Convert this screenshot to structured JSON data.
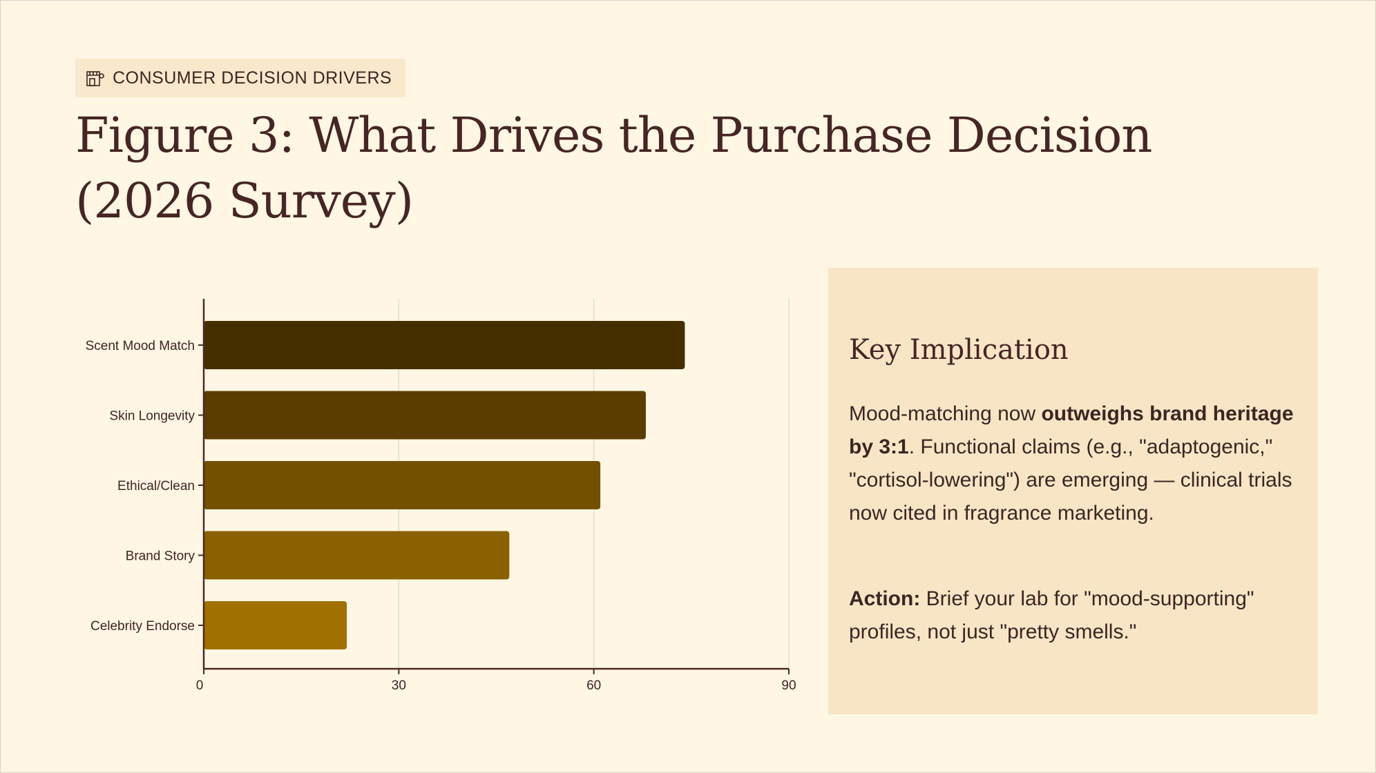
{
  "tag": {
    "icon": "storefront-icon",
    "label": "CONSUMER DECISION DRIVERS"
  },
  "title": "Figure 3: What Drives the Purchase Decision (2026 Survey)",
  "chart_data": {
    "type": "bar",
    "orientation": "horizontal",
    "categories": [
      "Scent Mood Match",
      "Skin Longevity",
      "Ethical/Clean",
      "Brand Story",
      "Celebrity Endorse"
    ],
    "values": [
      74,
      68,
      61,
      47,
      22
    ],
    "colors": [
      "#452f00",
      "#5c3d00",
      "#734f00",
      "#8a6000",
      "#a17100"
    ],
    "xlim": [
      0,
      90
    ],
    "xticks": [
      0,
      30,
      60,
      90
    ],
    "grid": true,
    "title": "",
    "xlabel": "",
    "ylabel": ""
  },
  "panel": {
    "heading": "Key Implication",
    "p1_pre": "Mood-matching now ",
    "p1_bold": "outweighs brand heritage by 3:1",
    "p1_post": ". Functional claims (e.g., \"adaptogenic,\" \"cortisol-lowering\") are emerging — clinical trials now cited in fragrance marketing.",
    "p2_bold": "Action:",
    "p2_post": " Brief your lab for \"mood-supporting\" profiles, not just \"pretty smells.\""
  }
}
